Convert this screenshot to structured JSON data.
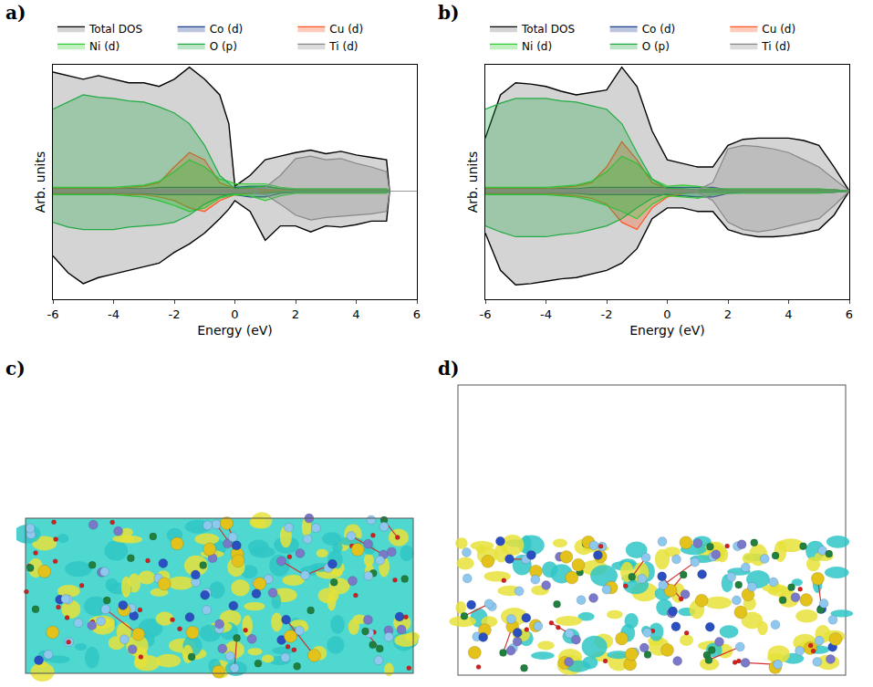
{
  "chart_data": [
    {
      "panel": "a)",
      "type": "line",
      "x_label": "Energy (eV)",
      "y_label": "Arb. units",
      "x": [
        -6,
        -5.5,
        -5,
        -4.5,
        -4,
        -3.5,
        -3,
        -2.5,
        -2,
        -1.5,
        -1,
        -0.5,
        -0.2,
        0,
        0.5,
        1,
        1.5,
        2,
        2.5,
        3,
        3.5,
        4,
        4.5,
        5,
        5.1
      ],
      "xlim": [
        -6,
        6
      ],
      "xticks": [
        -6,
        -4,
        -2,
        0,
        2,
        4,
        6
      ],
      "ylim": [
        -9,
        10.5
      ],
      "tick_labels": "x",
      "grid": false,
      "legend": "top",
      "series": [
        {
          "name": "Total DOS",
          "color": "#000000",
          "values": [
            9.9,
            9.6,
            9.3,
            9.6,
            9.3,
            9.0,
            9.0,
            8.7,
            9.3,
            10.3,
            9.3,
            8.0,
            5.6,
            0.4,
            1.3,
            2.6,
            2.9,
            3.2,
            3.4,
            3.1,
            3.3,
            3.0,
            2.8,
            2.6,
            0
          ],
          "values_down": [
            -5.4,
            -6.8,
            -7.7,
            -7.2,
            -6.9,
            -6.6,
            -6.3,
            -6.0,
            -5.1,
            -4.4,
            -3.5,
            -2.3,
            -1.5,
            -0.8,
            -1.7,
            -4.1,
            -2.9,
            -2.9,
            -3.4,
            -2.9,
            -3.0,
            -2.8,
            -2.5,
            -2.5,
            0
          ]
        },
        {
          "name": "Co (d)",
          "color": "#1f3f8f",
          "values": [
            0.2,
            0.2,
            0.2,
            0.2,
            0.2,
            0.2,
            0.2,
            0.3,
            0.3,
            0.3,
            0.3,
            0.3,
            0.3,
            0.3,
            0.4,
            0.4,
            0.2,
            0.1,
            0.1,
            0.1,
            0.1,
            0.1,
            0.1,
            0.1,
            0
          ],
          "values_down": [
            -0.2,
            -0.2,
            -0.2,
            -0.2,
            -0.2,
            -0.2,
            -0.2,
            -0.3,
            -0.3,
            -0.3,
            -0.3,
            -0.3,
            -0.3,
            -0.3,
            -0.5,
            -0.5,
            -0.2,
            -0.1,
            -0.1,
            -0.1,
            -0.1,
            -0.1,
            -0.1,
            -0.1,
            0
          ]
        },
        {
          "name": "Cu (d)",
          "color": "#ff5522",
          "values": [
            0.2,
            0.2,
            0.2,
            0.2,
            0.2,
            0.3,
            0.4,
            0.7,
            2.0,
            3.2,
            2.6,
            0.7,
            0.4,
            0.2,
            0.2,
            0.1,
            0.1,
            0.1,
            0.1,
            0.1,
            0.1,
            0.1,
            0.1,
            0.1,
            0
          ],
          "values_down": [
            -0.2,
            -0.2,
            -0.2,
            -0.2,
            -0.2,
            -0.3,
            -0.3,
            -0.5,
            -0.8,
            -1.4,
            -1.7,
            -0.8,
            -0.5,
            -0.3,
            -0.2,
            -0.1,
            -0.1,
            -0.1,
            -0.1,
            -0.1,
            -0.1,
            -0.1,
            -0.1,
            -0.1,
            0
          ]
        },
        {
          "name": "Ni (d)",
          "color": "#33cc33",
          "values": [
            0.3,
            0.3,
            0.3,
            0.3,
            0.3,
            0.4,
            0.5,
            0.8,
            1.6,
            2.6,
            2.0,
            1.0,
            0.8,
            0.6,
            0.6,
            0.6,
            0.3,
            0.2,
            0.2,
            0.2,
            0.2,
            0.2,
            0.2,
            0.2,
            0
          ],
          "values_down": [
            -0.3,
            -0.3,
            -0.3,
            -0.3,
            -0.3,
            -0.4,
            -0.5,
            -0.8,
            -1.2,
            -1.7,
            -1.4,
            -0.6,
            -0.4,
            -0.3,
            -0.4,
            -0.8,
            -0.4,
            -0.2,
            -0.2,
            -0.2,
            -0.2,
            -0.2,
            -0.2,
            -0.2,
            0
          ]
        },
        {
          "name": "O (p)",
          "color": "#22aa44",
          "values": [
            6.8,
            7.4,
            8.0,
            7.8,
            7.7,
            7.5,
            7.4,
            7.0,
            6.5,
            5.6,
            3.8,
            1.3,
            0.6,
            0.2,
            0.3,
            0.4,
            0.2,
            0.1,
            0.1,
            0.1,
            0.1,
            0.1,
            0.1,
            0.1,
            0
          ],
          "values_down": [
            -2.6,
            -3.0,
            -3.2,
            -3.2,
            -3.2,
            -3.0,
            -2.9,
            -2.8,
            -2.6,
            -2.0,
            -1.1,
            -0.5,
            -0.3,
            -0.2,
            -0.2,
            -0.2,
            -0.1,
            -0.1,
            -0.1,
            -0.1,
            -0.1,
            -0.1,
            -0.1,
            -0.1,
            0
          ]
        },
        {
          "name": "Ti (d)",
          "color": "#888888",
          "values": [
            0.1,
            0.1,
            0.1,
            0.1,
            0.1,
            0.1,
            0.1,
            0.1,
            0.1,
            0.1,
            0.1,
            0.1,
            0.1,
            0.1,
            0.1,
            0.3,
            1.3,
            2.7,
            2.9,
            2.6,
            2.7,
            2.3,
            2.0,
            1.6,
            0
          ],
          "values_down": [
            -0.1,
            -0.1,
            -0.1,
            -0.1,
            -0.1,
            -0.1,
            -0.1,
            -0.1,
            -0.1,
            -0.1,
            -0.1,
            -0.1,
            -0.1,
            -0.1,
            -0.1,
            -0.3,
            -1.1,
            -2.0,
            -2.4,
            -2.2,
            -2.1,
            -2.0,
            -1.9,
            -1.7,
            0
          ]
        }
      ]
    },
    {
      "panel": "b)",
      "type": "line",
      "x_label": "Energy (eV)",
      "y_label": "Arb. units",
      "x": [
        -6,
        -5.5,
        -5,
        -4.5,
        -4,
        -3.5,
        -3,
        -2.5,
        -2,
        -1.5,
        -1,
        -0.5,
        0,
        0.5,
        1,
        1.5,
        2,
        2.5,
        3,
        3.5,
        4,
        4.5,
        5,
        5.5,
        6
      ],
      "xlim": [
        -6,
        6
      ],
      "xticks": [
        -6,
        -4,
        -2,
        0,
        2,
        4,
        6
      ],
      "ylim": [
        -9,
        10.5
      ],
      "tick_labels": "x",
      "grid": false,
      "legend": "top",
      "series": [
        {
          "name": "Total DOS",
          "color": "#000000",
          "values": [
            4.4,
            8.0,
            9.0,
            8.9,
            8.7,
            8.3,
            8.0,
            8.2,
            8.4,
            10.3,
            8.7,
            5.0,
            2.6,
            2.3,
            2.0,
            2.0,
            3.8,
            4.3,
            4.4,
            4.4,
            4.4,
            4.2,
            3.8,
            2.0,
            0
          ],
          "values_down": [
            -3.5,
            -6.6,
            -7.8,
            -7.7,
            -7.5,
            -7.3,
            -7.2,
            -6.9,
            -6.6,
            -6.0,
            -4.8,
            -2.3,
            -1.4,
            -1.4,
            -1.7,
            -1.7,
            -3.2,
            -3.6,
            -3.8,
            -3.8,
            -3.7,
            -3.5,
            -3.2,
            -2.0,
            0
          ]
        },
        {
          "name": "Co (d)",
          "color": "#1f3f8f",
          "values": [
            0.2,
            0.2,
            0.2,
            0.2,
            0.2,
            0.2,
            0.2,
            0.3,
            0.3,
            0.3,
            0.3,
            0.3,
            0.3,
            0.3,
            0.3,
            0.3,
            0.1,
            0.1,
            0.1,
            0.1,
            0.1,
            0.1,
            0.1,
            0.1,
            0
          ],
          "values_down": [
            -0.2,
            -0.2,
            -0.2,
            -0.2,
            -0.2,
            -0.2,
            -0.2,
            -0.3,
            -0.3,
            -0.3,
            -0.3,
            -0.3,
            -0.3,
            -0.4,
            -0.5,
            -0.5,
            -0.2,
            -0.1,
            -0.1,
            -0.1,
            -0.1,
            -0.1,
            -0.1,
            -0.1,
            0
          ]
        },
        {
          "name": "Cu (d)",
          "color": "#ff5522",
          "values": [
            0.2,
            0.2,
            0.2,
            0.2,
            0.2,
            0.3,
            0.4,
            0.7,
            2.0,
            4.1,
            2.6,
            0.7,
            0.2,
            0.1,
            0.1,
            0.1,
            0.1,
            0.1,
            0.1,
            0.1,
            0.1,
            0.1,
            0.1,
            0.1,
            0
          ],
          "values_down": [
            -0.2,
            -0.2,
            -0.2,
            -0.2,
            -0.2,
            -0.3,
            -0.4,
            -0.6,
            -1.1,
            -2.6,
            -3.2,
            -1.4,
            -0.5,
            -0.2,
            -0.1,
            -0.1,
            -0.1,
            -0.1,
            -0.1,
            -0.1,
            -0.1,
            -0.1,
            -0.1,
            -0.1,
            0
          ]
        },
        {
          "name": "Ni (d)",
          "color": "#33cc33",
          "values": [
            0.3,
            0.3,
            0.3,
            0.3,
            0.3,
            0.4,
            0.5,
            0.8,
            1.6,
            2.9,
            2.3,
            1.0,
            0.4,
            0.5,
            0.4,
            0.2,
            0.2,
            0.2,
            0.2,
            0.2,
            0.2,
            0.2,
            0.2,
            0.1,
            0
          ],
          "values_down": [
            -0.3,
            -0.3,
            -0.3,
            -0.3,
            -0.3,
            -0.4,
            -0.5,
            -0.8,
            -1.2,
            -1.7,
            -2.3,
            -1.1,
            -0.4,
            -0.5,
            -0.6,
            -0.3,
            -0.2,
            -0.2,
            -0.2,
            -0.2,
            -0.2,
            -0.2,
            -0.2,
            -0.1,
            0
          ]
        },
        {
          "name": "O (p)",
          "color": "#22aa44",
          "values": [
            6.8,
            7.3,
            7.7,
            7.7,
            7.7,
            7.5,
            7.4,
            7.1,
            6.8,
            5.6,
            3.2,
            1.0,
            0.2,
            0.2,
            0.1,
            0.1,
            0.1,
            0.1,
            0.1,
            0.1,
            0.1,
            0.1,
            0.1,
            0.1,
            0
          ],
          "values_down": [
            -2.9,
            -3.4,
            -3.8,
            -3.8,
            -3.8,
            -3.6,
            -3.5,
            -3.2,
            -2.9,
            -2.3,
            -1.4,
            -0.6,
            -0.2,
            -0.2,
            -0.1,
            -0.1,
            -0.1,
            -0.1,
            -0.1,
            -0.1,
            -0.1,
            -0.1,
            -0.1,
            -0.1,
            0
          ]
        },
        {
          "name": "Ti (d)",
          "color": "#888888",
          "values": [
            0.1,
            0.1,
            0.1,
            0.1,
            0.1,
            0.1,
            0.1,
            0.1,
            0.1,
            0.1,
            0.1,
            0.1,
            0.1,
            0.1,
            0.1,
            0.7,
            3.5,
            3.8,
            3.7,
            3.5,
            3.2,
            2.6,
            2.0,
            1.0,
            0
          ],
          "values_down": [
            -0.1,
            -0.1,
            -0.1,
            -0.1,
            -0.1,
            -0.1,
            -0.1,
            -0.1,
            -0.1,
            -0.1,
            -0.1,
            -0.1,
            -0.1,
            -0.1,
            -0.1,
            -0.8,
            -2.6,
            -3.2,
            -3.4,
            -3.2,
            -2.9,
            -2.6,
            -2.3,
            -1.2,
            0
          ]
        }
      ]
    }
  ],
  "structures": [
    {
      "panel": "c)"
    },
    {
      "panel": "d)"
    }
  ]
}
